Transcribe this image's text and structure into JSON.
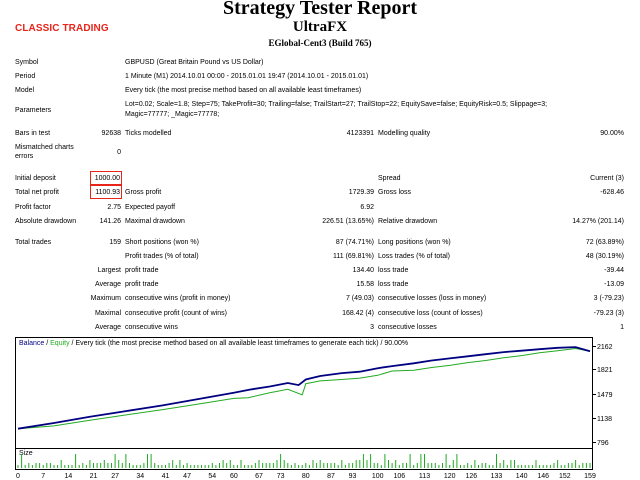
{
  "header": {
    "logo_text": "CLASSIC TRADING",
    "title": "Strategy Tester Report",
    "ea_name": "UltraFX",
    "server": "EGlobal-Cent3 (Build 765)"
  },
  "info": {
    "symbol_label": "Symbol",
    "symbol_value": "GBPUSD (Great Britain Pound vs US Dollar)",
    "period_label": "Period",
    "period_value": "1 Minute (M1) 2014.10.01 00:00 - 2015.01.01 19:47 (2014.10.01 - 2015.01.01)",
    "model_label": "Model",
    "model_value": "Every tick (the most precise method based on all available least timeframes)",
    "parameters_label": "Parameters",
    "parameters_line1": "Lot=0.02; Scale=1.8; Step=75; TakeProfit=30; Trailing=false; TrailStart=27; TrailStop=22; EquitySave=false; EquityRisk=0.5; Slippage=3;",
    "parameters_line2": "Magic=77777; _Magic=77778;"
  },
  "stats": {
    "bars_label": "Bars in test",
    "bars_value": "92638",
    "ticks_label": "Ticks modelled",
    "ticks_value": "4123391",
    "quality_label": "Modelling quality",
    "quality_value": "90.00%",
    "mismatch_label1": "Mismatched charts",
    "mismatch_label2": "errors",
    "mismatch_value": "0",
    "initial_deposit_label": "Initial deposit",
    "initial_deposit_value": "1000.00",
    "spread_label": "Spread",
    "spread_value": "Current (3)",
    "net_profit_label": "Total net profit",
    "net_profit_value": "1100.93",
    "gross_profit_label": "Gross profit",
    "gross_profit_value": "1729.39",
    "gross_loss_label": "Gross loss",
    "gross_loss_value": "-628.46",
    "profit_factor_label": "Profit factor",
    "profit_factor_value": "2.75",
    "expected_payoff_label": "Expected payoff",
    "expected_payoff_value": "6.92",
    "abs_dd_label": "Absolute drawdown",
    "abs_dd_value": "141.26",
    "max_dd_label": "Maximal drawdown",
    "max_dd_value": "226.51 (13.65%)",
    "rel_dd_label": "Relative drawdown",
    "rel_dd_value": "14.27% (201.14)",
    "total_trades_label": "Total trades",
    "total_trades_value": "159",
    "short_label": "Short positions (won %)",
    "short_value": "87 (74.71%)",
    "long_label": "Long positions (won %)",
    "long_value": "72 (63.89%)",
    "profit_trades_label": "Profit trades (% of total)",
    "profit_trades_value": "111 (69.81%)",
    "loss_trades_label": "Loss trades (% of total)",
    "loss_trades_value": "48 (30.19%)",
    "largest_label": "Largest",
    "largest_profit_label": "profit trade",
    "largest_profit_value": "134.40",
    "largest_loss_label": "loss trade",
    "largest_loss_value": "-39.44",
    "average_label": "Average",
    "average_profit_label": "profit trade",
    "average_profit_value": "15.58",
    "average_loss_label": "loss trade",
    "average_loss_value": "-13.09",
    "maximum_label": "Maximum",
    "max_cons_wins_label": "consecutive wins (profit in money)",
    "max_cons_wins_value": "7 (49.03)",
    "max_cons_losses_label": "consecutive losses (loss in money)",
    "max_cons_losses_value": "3 (-79.23)",
    "maximal_label": "Maximal",
    "max_cons_profit_label": "consecutive profit (count of wins)",
    "max_cons_profit_value": "168.42 (4)",
    "max_cons_loss_label": "consecutive loss (count of losses)",
    "max_cons_loss_value": "-79.23 (3)",
    "average2_label": "Average",
    "avg_cons_wins_label": "consecutive wins",
    "avg_cons_wins_value": "3",
    "avg_cons_losses_label": "consecutive losses",
    "avg_cons_losses_value": "1"
  },
  "chart": {
    "legend_balance": "Balance",
    "legend_sep": " / ",
    "legend_equity": "Equity",
    "legend_rest": " / Every tick (the most precise method based on all available least timeframes to generate each tick) / 90.00%",
    "size_label": "Size",
    "colors": {
      "balance": "#000080",
      "equity": "#22aa22",
      "volume": "#22aa22",
      "redbox": "#e8251b",
      "logo": "#e8251b"
    }
  },
  "chart_data": {
    "type": "line",
    "x_ticks": [
      "0",
      "7",
      "14",
      "21",
      "27",
      "34",
      "41",
      "47",
      "54",
      "60",
      "67",
      "73",
      "80",
      "87",
      "93",
      "100",
      "106",
      "113",
      "120",
      "126",
      "133",
      "140",
      "146",
      "152",
      "159"
    ],
    "y_ticks": [
      "2162",
      "1821",
      "1479",
      "1138",
      "796"
    ],
    "ylim": [
      796,
      2162
    ],
    "xlim": [
      0,
      159
    ],
    "series": [
      {
        "name": "Balance",
        "x": [
          0,
          10,
          20,
          30,
          40,
          50,
          60,
          65,
          70,
          75,
          78,
          80,
          84,
          90,
          95,
          100,
          104,
          110,
          115,
          120,
          125,
          130,
          135,
          140,
          145,
          150,
          155,
          159
        ],
        "y": [
          1000,
          1080,
          1170,
          1250,
          1330,
          1420,
          1510,
          1560,
          1600,
          1650,
          1620,
          1700,
          1750,
          1790,
          1810,
          1860,
          1890,
          1930,
          1970,
          2000,
          2030,
          2060,
          2090,
          2110,
          2130,
          2150,
          2160,
          2101
        ]
      },
      {
        "name": "Equity",
        "x": [
          0,
          10,
          20,
          28,
          40,
          50,
          60,
          64,
          70,
          75,
          79,
          80,
          84,
          90,
          95,
          100,
          104,
          110,
          115,
          120,
          125,
          130,
          135,
          140,
          145,
          150,
          155,
          159
        ],
        "y": [
          1000,
          1040,
          1120,
          1180,
          1270,
          1350,
          1430,
          1440,
          1510,
          1560,
          1480,
          1640,
          1680,
          1700,
          1720,
          1760,
          1820,
          1830,
          1870,
          1900,
          1940,
          1970,
          2010,
          2040,
          2080,
          2110,
          2140,
          2101
        ]
      }
    ]
  }
}
